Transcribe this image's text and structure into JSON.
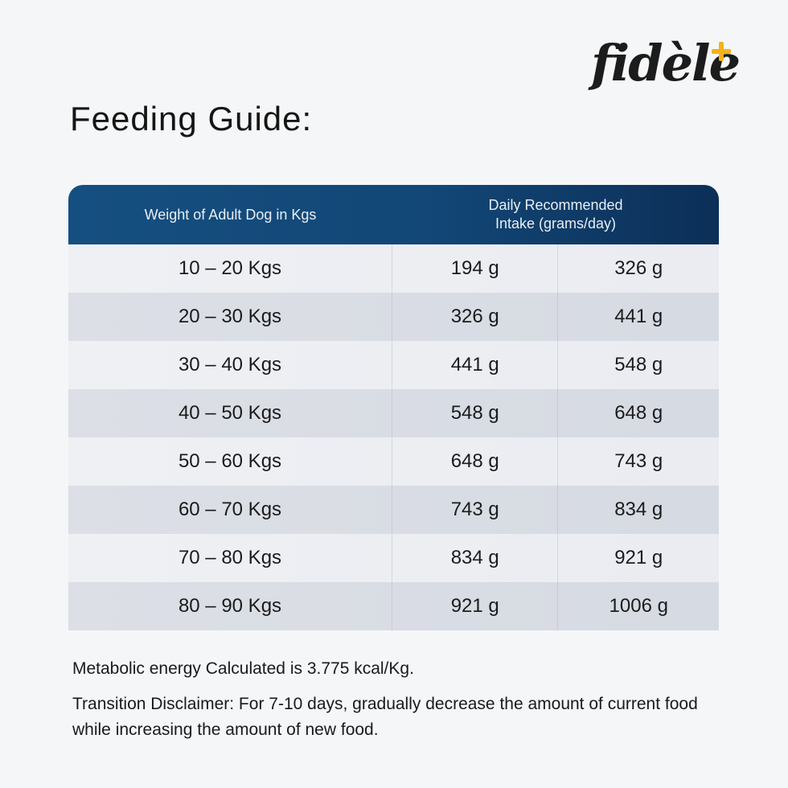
{
  "brand": {
    "name": "fidèle",
    "accent_color": "#f5b21b",
    "plus_symbol": "+"
  },
  "title": "Feeding Guide:",
  "table": {
    "header": {
      "weight": "Weight of Adult Dog in Kgs",
      "intake_line1": "Daily Recommended",
      "intake_line2": "Intake (grams/day)"
    },
    "header_color": "#124777",
    "rows": [
      {
        "weight": "10 – 20 Kgs",
        "min": "194 g",
        "max": "326 g"
      },
      {
        "weight": "20 – 30 Kgs",
        "min": "326 g",
        "max": "441 g"
      },
      {
        "weight": "30 – 40 Kgs",
        "min": "441 g",
        "max": "548 g"
      },
      {
        "weight": "40 – 50 Kgs",
        "min": "548 g",
        "max": "648 g"
      },
      {
        "weight": "50 – 60 Kgs",
        "min": "648 g",
        "max": "743 g"
      },
      {
        "weight": "60 – 70 Kgs",
        "min": "743 g",
        "max": "834 g"
      },
      {
        "weight": "70 – 80 Kgs",
        "min": "834 g",
        "max": "921 g"
      },
      {
        "weight": "80 – 90 Kgs",
        "min": "921 g",
        "max": "1006 g"
      }
    ]
  },
  "notes": {
    "energy": "Metabolic energy Calculated is 3.775 kcal/Kg.",
    "disclaimer": "Transition Disclaimer: For 7-10 days, gradually decrease the amount of current food while increasing the amount of new food."
  }
}
